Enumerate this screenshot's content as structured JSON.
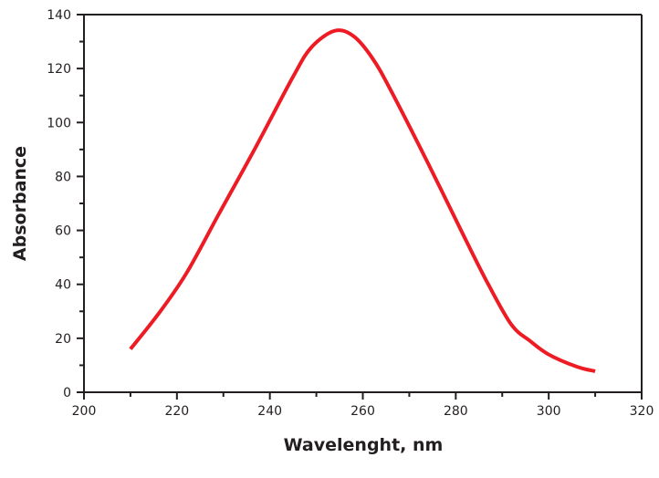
{
  "chart_data": {
    "type": "line",
    "title": "",
    "xlabel": "Wavelenght, nm",
    "ylabel": "Absorbance",
    "xlim": [
      200,
      320
    ],
    "ylim": [
      0,
      140
    ],
    "xticks": [
      200,
      220,
      240,
      260,
      280,
      300,
      320
    ],
    "yticks": [
      0,
      20,
      40,
      60,
      80,
      100,
      120,
      140
    ],
    "grid": false,
    "line_color": "#ed1c24",
    "series": [
      {
        "x": [
          210,
          216,
          222,
          229,
          237,
          245,
          249,
          254,
          258,
          262,
          266,
          274,
          282,
          287,
          292,
          296,
          300,
          306,
          310
        ],
        "y": [
          16,
          29,
          44,
          66,
          91,
          117,
          128,
          134,
          132,
          124,
          112,
          85,
          57,
          40,
          25,
          19,
          14,
          9.5,
          7.8
        ]
      }
    ]
  }
}
